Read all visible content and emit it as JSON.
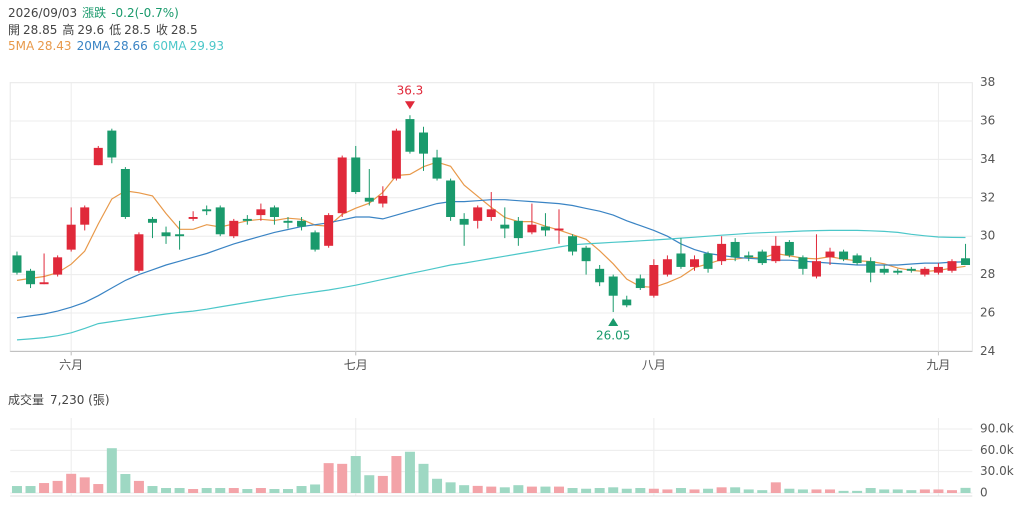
{
  "header": {
    "date": "2026/09/03",
    "change_label": "漲跌",
    "change": "-0.2(-0.7%)",
    "ohlc": [
      {
        "label": "開",
        "value": 28.85
      },
      {
        "label": "高",
        "value": 29.6
      },
      {
        "label": "低",
        "value": 28.5
      },
      {
        "label": "收",
        "value": 28.5
      }
    ],
    "ma": [
      28.43,
      28.66,
      29.93
    ]
  },
  "chart_data": [
    {
      "type": "candlestick",
      "categories": [
        null,
        null,
        null,
        null,
        "六月",
        null,
        null,
        null,
        null,
        null,
        null,
        null,
        null,
        null,
        null,
        null,
        null,
        null,
        null,
        null,
        null,
        null,
        null,
        null,
        null,
        "七月",
        null,
        null,
        null,
        null,
        null,
        null,
        null,
        null,
        null,
        null,
        null,
        null,
        null,
        null,
        null,
        null,
        null,
        null,
        null,
        null,
        null,
        "八月",
        null,
        null,
        null,
        null,
        null,
        null,
        null,
        null,
        null,
        null,
        null,
        null,
        null,
        null,
        null,
        null,
        null,
        null,
        null,
        null,
        "九月",
        null,
        null
      ],
      "open": [
        29.0,
        28.2,
        27.5,
        28.0,
        29.3,
        30.6,
        33.7,
        35.5,
        33.5,
        28.2,
        30.9,
        30.2,
        30.1,
        30.9,
        31.4,
        31.5,
        30.0,
        30.9,
        31.1,
        31.5,
        30.8,
        30.8,
        30.2,
        29.5,
        31.2,
        34.1,
        32.0,
        31.7,
        33.0,
        36.1,
        35.4,
        34.1,
        32.9,
        30.9,
        30.8,
        31.0,
        30.6,
        30.8,
        30.2,
        30.5,
        30.3,
        30.0,
        29.4,
        28.3,
        27.9,
        26.7,
        27.8,
        26.9,
        28.0,
        29.1,
        28.4,
        29.1,
        28.7,
        29.7,
        29.0,
        29.2,
        28.7,
        29.7,
        28.9,
        27.9,
        28.9,
        29.2,
        29.0,
        28.7,
        28.3,
        28.2,
        28.3,
        28.0,
        28.1,
        28.2,
        28.85
      ],
      "high": [
        29.2,
        28.3,
        29.1,
        29.0,
        31.5,
        31.6,
        34.7,
        35.6,
        33.6,
        30.2,
        31.0,
        30.5,
        30.8,
        31.3,
        31.6,
        31.6,
        30.9,
        31.1,
        31.7,
        31.6,
        31.0,
        31.0,
        30.3,
        31.2,
        34.2,
        34.7,
        33.5,
        32.6,
        35.6,
        36.3,
        35.7,
        34.5,
        33.0,
        31.2,
        31.6,
        32.3,
        31.5,
        31.0,
        31.7,
        31.2,
        31.4,
        30.1,
        29.5,
        28.5,
        28.0,
        26.9,
        28.0,
        28.8,
        29.0,
        29.9,
        29.0,
        29.2,
        30.0,
        29.9,
        29.2,
        29.3,
        30.0,
        29.8,
        29.0,
        30.1,
        29.4,
        29.3,
        29.1,
        28.9,
        28.5,
        28.3,
        28.4,
        28.4,
        28.6,
        28.8,
        29.6
      ],
      "low": [
        28.0,
        27.3,
        27.5,
        27.9,
        29.2,
        30.3,
        33.7,
        33.8,
        30.9,
        28.1,
        29.9,
        29.6,
        29.3,
        30.8,
        31.1,
        30.0,
        29.9,
        30.6,
        30.8,
        30.6,
        30.4,
        30.3,
        29.2,
        29.4,
        31.0,
        32.2,
        31.6,
        31.5,
        32.9,
        34.3,
        33.4,
        32.9,
        30.8,
        29.5,
        30.4,
        30.8,
        29.9,
        29.5,
        30.1,
        30.0,
        29.6,
        29.0,
        28.0,
        27.4,
        26.05,
        26.3,
        27.2,
        26.8,
        27.9,
        28.3,
        28.2,
        28.1,
        28.5,
        28.7,
        28.7,
        28.5,
        28.6,
        28.9,
        28.0,
        27.8,
        28.5,
        28.7,
        28.5,
        27.6,
        28.0,
        28.0,
        28.1,
        27.9,
        28.0,
        28.1,
        28.5
      ],
      "close": [
        28.1,
        27.5,
        27.6,
        28.9,
        30.6,
        31.5,
        34.6,
        34.1,
        31.0,
        30.1,
        30.7,
        30.0,
        30.0,
        31.0,
        31.3,
        30.1,
        30.8,
        30.8,
        31.4,
        31.0,
        30.7,
        30.5,
        29.3,
        31.1,
        34.1,
        32.3,
        31.8,
        32.1,
        35.5,
        34.4,
        34.3,
        33.0,
        31.0,
        30.6,
        31.5,
        31.4,
        30.4,
        29.9,
        30.6,
        30.3,
        30.4,
        29.2,
        28.7,
        27.6,
        26.9,
        26.4,
        27.3,
        28.5,
        28.8,
        28.4,
        28.8,
        28.3,
        29.6,
        28.9,
        28.9,
        28.6,
        29.5,
        29.0,
        28.3,
        28.7,
        29.2,
        28.8,
        28.6,
        28.1,
        28.1,
        28.1,
        28.2,
        28.3,
        28.4,
        28.7,
        28.5
      ],
      "up_color": "#e0293a",
      "down_color": "#1a9a6c",
      "series": [
        {
          "name": "5MA",
          "color": "#e8994a",
          "values": [
            27.7,
            27.8,
            27.9,
            28.1,
            28.54,
            29.22,
            30.64,
            31.94,
            32.36,
            32.26,
            32.1,
            31.18,
            30.36,
            30.36,
            30.6,
            30.48,
            30.64,
            30.8,
            30.88,
            30.82,
            30.94,
            30.88,
            30.58,
            30.52,
            31.14,
            31.46,
            31.72,
            32.28,
            33.16,
            33.22,
            33.62,
            33.86,
            33.64,
            32.66,
            32.08,
            31.5,
            30.98,
            30.76,
            30.76,
            30.52,
            30.32,
            30.08,
            29.84,
            29.24,
            28.56,
            27.76,
            27.38,
            27.34,
            27.58,
            27.88,
            28.36,
            28.56,
            28.78,
            28.8,
            28.9,
            28.86,
            29.1,
            28.98,
            28.86,
            28.82,
            28.94,
            28.8,
            28.72,
            28.68,
            28.56,
            28.34,
            28.22,
            28.16,
            28.22,
            28.34,
            28.43
          ]
        },
        {
          "name": "20MA",
          "color": "#3a84c4",
          "values": [
            25.75,
            25.85,
            25.95,
            26.1,
            26.3,
            26.55,
            26.9,
            27.3,
            27.7,
            28.0,
            28.25,
            28.5,
            28.7,
            28.9,
            29.1,
            29.35,
            29.6,
            29.8,
            30.0,
            30.2,
            30.35,
            30.5,
            30.6,
            30.7,
            30.85,
            31.0,
            31.0,
            30.9,
            31.1,
            31.3,
            31.5,
            31.7,
            31.8,
            31.8,
            31.85,
            31.9,
            31.9,
            31.85,
            31.8,
            31.75,
            31.7,
            31.6,
            31.45,
            31.3,
            31.1,
            30.8,
            30.55,
            30.3,
            30.0,
            29.6,
            29.3,
            29.1,
            29.0,
            28.9,
            28.85,
            28.8,
            28.75,
            28.75,
            28.7,
            28.65,
            28.6,
            28.55,
            28.5,
            28.5,
            28.5,
            28.5,
            28.55,
            28.6,
            28.6,
            28.65,
            28.66
          ]
        },
        {
          "name": "60MA",
          "color": "#4cc7c9",
          "values": [
            24.6,
            24.65,
            24.72,
            24.82,
            24.97,
            25.2,
            25.45,
            25.55,
            25.65,
            25.75,
            25.85,
            25.95,
            26.03,
            26.1,
            26.2,
            26.32,
            26.44,
            26.55,
            26.67,
            26.78,
            26.9,
            27.0,
            27.1,
            27.2,
            27.32,
            27.45,
            27.6,
            27.75,
            27.9,
            28.05,
            28.2,
            28.35,
            28.5,
            28.6,
            28.72,
            28.84,
            28.96,
            29.08,
            29.2,
            29.32,
            29.44,
            29.55,
            29.6,
            29.64,
            29.68,
            29.72,
            29.76,
            29.8,
            29.85,
            29.9,
            29.95,
            30.0,
            30.05,
            30.1,
            30.15,
            30.18,
            30.21,
            30.24,
            30.27,
            30.29,
            30.3,
            30.3,
            30.3,
            30.28,
            30.25,
            30.2,
            30.1,
            30.02,
            29.96,
            29.94,
            29.93
          ]
        }
      ],
      "annotations": [
        {
          "value": 36.3,
          "color": "#e0293a"
        },
        {
          "value": 26.05,
          "color": "#1a9a6c"
        }
      ],
      "ylim": [
        24,
        38
      ],
      "yticks": [
        24,
        26,
        28,
        30,
        32,
        34,
        36,
        38
      ],
      "grid": true
    },
    {
      "type": "bar",
      "title": "成交量",
      "current_label": "7,230 (張)",
      "up_color": "#f3a3a8",
      "down_color": "#9ed8c3",
      "values": [
        9800,
        9800,
        14000,
        17000,
        27000,
        22000,
        12600,
        63000,
        26700,
        17000,
        9800,
        7000,
        7000,
        5600,
        7000,
        7000,
        7000,
        5600,
        7000,
        5600,
        5600,
        9800,
        12000,
        42000,
        41000,
        52000,
        25000,
        24000,
        52000,
        58000,
        41000,
        20000,
        15000,
        11000,
        10000,
        9000,
        8000,
        11000,
        9000,
        9000,
        9000,
        7000,
        6000,
        7000,
        8000,
        6000,
        7000,
        6000,
        5000,
        7000,
        5000,
        6000,
        8000,
        8000,
        5000,
        4000,
        15000,
        6000,
        5000,
        5000,
        5000,
        3000,
        3000,
        7000,
        5000,
        5000,
        4000,
        5000,
        5000,
        4000,
        7230
      ],
      "ylim": [
        0,
        90000
      ],
      "yticks": [
        0,
        {
          "value": 30000,
          "label": "30.0k"
        },
        {
          "value": 60000,
          "label": "60.0k"
        },
        {
          "value": 90000,
          "label": "90.0k"
        }
      ],
      "grid": true
    }
  ]
}
